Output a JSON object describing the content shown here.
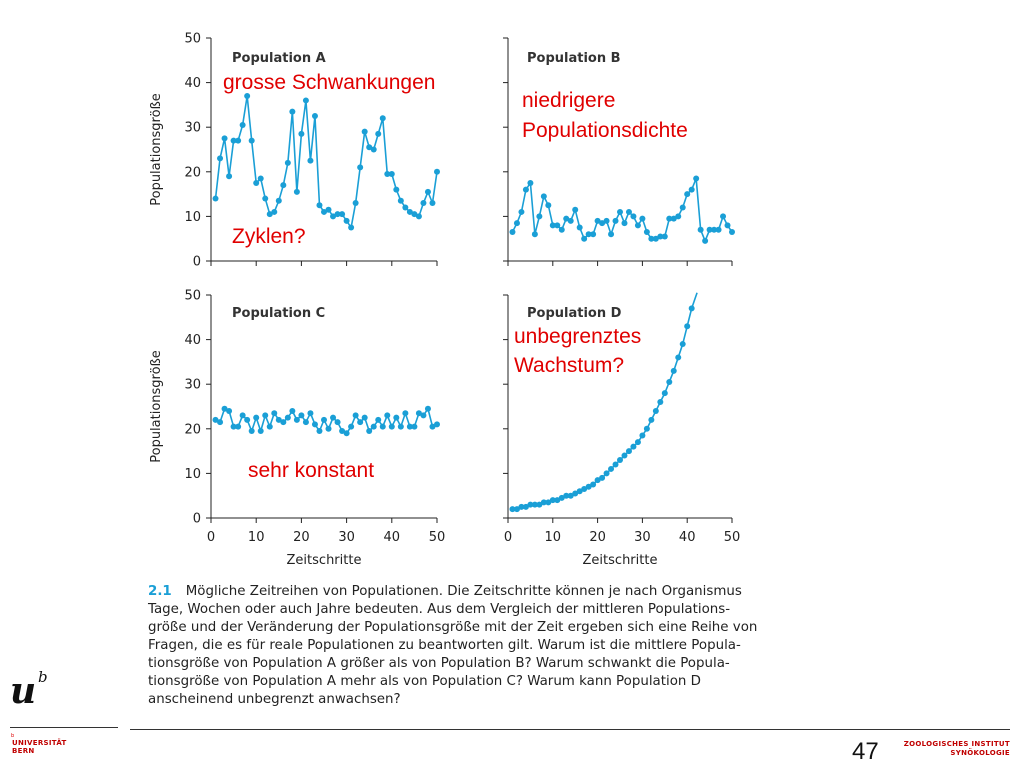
{
  "chart_data": [
    {
      "type": "line",
      "title": "Population A",
      "annotations": [
        "grosse Schwankungen",
        "Zyklen?"
      ],
      "ylabel": "Populationsgröße",
      "xlabel": "",
      "xlim": [
        0,
        50
      ],
      "ylim": [
        0,
        50
      ],
      "xticks": [],
      "yticks": [
        0,
        10,
        20,
        30,
        40,
        50
      ],
      "x": [
        1,
        2,
        3,
        4,
        5,
        6,
        7,
        8,
        9,
        10,
        11,
        12,
        13,
        14,
        15,
        16,
        17,
        18,
        19,
        20,
        21,
        22,
        23,
        24,
        25,
        26,
        27,
        28,
        29,
        30,
        31,
        32,
        33,
        34,
        35,
        36,
        37,
        38,
        39,
        40,
        41,
        42,
        43,
        44,
        45,
        46,
        47,
        48,
        49,
        50
      ],
      "values": [
        14,
        23,
        27.5,
        19,
        27,
        27,
        30.5,
        37,
        27,
        17.5,
        18.5,
        14,
        10.5,
        11,
        13.5,
        17,
        22,
        33.5,
        15.5,
        28.5,
        36,
        22.5,
        32.5,
        12.5,
        11,
        11.5,
        10,
        10.5,
        10.5,
        9,
        7.5,
        13,
        21,
        29,
        25.5,
        25,
        28.5,
        32,
        19.5,
        19.5,
        16,
        13.5,
        12,
        11,
        10.5,
        10,
        13,
        15.5,
        13,
        20
      ]
    },
    {
      "type": "line",
      "title": "Population B",
      "annotations": [
        "niedrigere",
        "Populationsdichte"
      ],
      "ylabel": "",
      "xlabel": "",
      "xlim": [
        0,
        50
      ],
      "ylim": [
        0,
        50
      ],
      "xticks": [],
      "yticks": [],
      "x": [
        1,
        2,
        3,
        4,
        5,
        6,
        7,
        8,
        9,
        10,
        11,
        12,
        13,
        14,
        15,
        16,
        17,
        18,
        19,
        20,
        21,
        22,
        23,
        24,
        25,
        26,
        27,
        28,
        29,
        30,
        31,
        32,
        33,
        34,
        35,
        36,
        37,
        38,
        39,
        40,
        41,
        42,
        43,
        44,
        45,
        46,
        47,
        48,
        49,
        50
      ],
      "values": [
        6.5,
        8.5,
        11,
        16,
        17.5,
        6,
        10,
        14.5,
        12.5,
        8,
        8,
        7,
        9.5,
        9,
        11.5,
        7.5,
        5,
        6,
        6,
        9,
        8.5,
        9,
        6,
        9,
        11,
        8.5,
        11,
        10,
        8,
        9.5,
        6.5,
        5,
        5,
        5.5,
        5.5,
        9.5,
        9.5,
        10,
        12,
        15,
        16,
        18.5,
        7,
        4.5,
        7,
        7,
        7,
        10,
        8,
        6.5
      ]
    },
    {
      "type": "line",
      "title": "Population C",
      "annotations": [
        "sehr konstant"
      ],
      "ylabel": "Populationsgröße",
      "xlabel": "Zeitschritte",
      "xlim": [
        0,
        50
      ],
      "ylim": [
        0,
        50
      ],
      "xticks": [
        0,
        10,
        20,
        30,
        40,
        50
      ],
      "yticks": [
        0,
        10,
        20,
        30,
        40,
        50
      ],
      "x": [
        1,
        2,
        3,
        4,
        5,
        6,
        7,
        8,
        9,
        10,
        11,
        12,
        13,
        14,
        15,
        16,
        17,
        18,
        19,
        20,
        21,
        22,
        23,
        24,
        25,
        26,
        27,
        28,
        29,
        30,
        31,
        32,
        33,
        34,
        35,
        36,
        37,
        38,
        39,
        40,
        41,
        42,
        43,
        44,
        45,
        46,
        47,
        48,
        49,
        50
      ],
      "values": [
        22,
        21.5,
        24.5,
        24,
        20.5,
        20.5,
        23,
        22,
        19.5,
        22.5,
        19.5,
        23,
        20.5,
        23.5,
        22,
        21.5,
        22.5,
        24,
        22,
        23,
        21.5,
        23.5,
        21,
        19.5,
        22,
        20,
        22.5,
        21.5,
        19.5,
        19,
        20.5,
        23,
        21.5,
        22.5,
        19.5,
        20.5,
        22,
        20.5,
        23,
        20.5,
        22.5,
        20.5,
        23.5,
        20.5,
        20.5,
        23.5,
        23,
        24.5,
        20.5,
        21
      ]
    },
    {
      "type": "line",
      "title": "Population D",
      "annotations": [
        "unbegrenztes",
        "Wachstum?"
      ],
      "ylabel": "",
      "xlabel": "Zeitschritte",
      "xlim": [
        0,
        50
      ],
      "ylim": [
        0,
        50
      ],
      "xticks": [
        0,
        10,
        20,
        30,
        40,
        50
      ],
      "yticks": [],
      "x": [
        1,
        2,
        3,
        4,
        5,
        6,
        7,
        8,
        9,
        10,
        11,
        12,
        13,
        14,
        15,
        16,
        17,
        18,
        19,
        20,
        21,
        22,
        23,
        24,
        25,
        26,
        27,
        28,
        29,
        30,
        31,
        32,
        33,
        34,
        35,
        36,
        37,
        38,
        39,
        40,
        41
      ],
      "values": [
        2,
        2,
        2.5,
        2.5,
        3,
        3,
        3,
        3.5,
        3.5,
        4,
        4,
        4.5,
        5,
        5,
        5.5,
        6,
        6.5,
        7,
        7.5,
        8.5,
        9,
        10,
        11,
        12,
        13,
        14,
        15,
        16,
        17,
        18.5,
        20,
        22,
        24,
        26,
        28,
        30.5,
        33,
        36,
        39,
        43,
        47
      ]
    }
  ],
  "caption": {
    "figure_number": "2.1",
    "lines": [
      "Mögliche Zeitreihen von Populationen. Die Zeitschritte können je nach Organismus",
      "Tage, Wochen oder auch Jahre bedeuten. Aus dem Vergleich der mittleren Populations-",
      "größe und der Veränderung der Populationsgröße mit der Zeit ergeben sich eine Reihe von",
      "Fragen, die es für reale Populationen zu beantworten gilt. Warum ist die mittlere Popula-",
      "tionsgröße von Population A größer als von Population B? Warum schwankt die Popula-",
      "tionsgröße von Population A mehr als von Population C? Warum kann Population D",
      "anscheinend unbegrenzt anwachsen?"
    ]
  },
  "footer": {
    "page_number": "47",
    "university_sup": "b",
    "university": [
      "UNIVERSITÄT",
      "BERN"
    ],
    "logo": "u",
    "logo_sup": "b",
    "institute": [
      "ZOOLOGISCHES INSTITUT",
      "SYNÖKOLOGIE"
    ]
  },
  "colors": {
    "series": "#1a9fd6",
    "annotation": "#e00000",
    "university": "#c00000"
  }
}
